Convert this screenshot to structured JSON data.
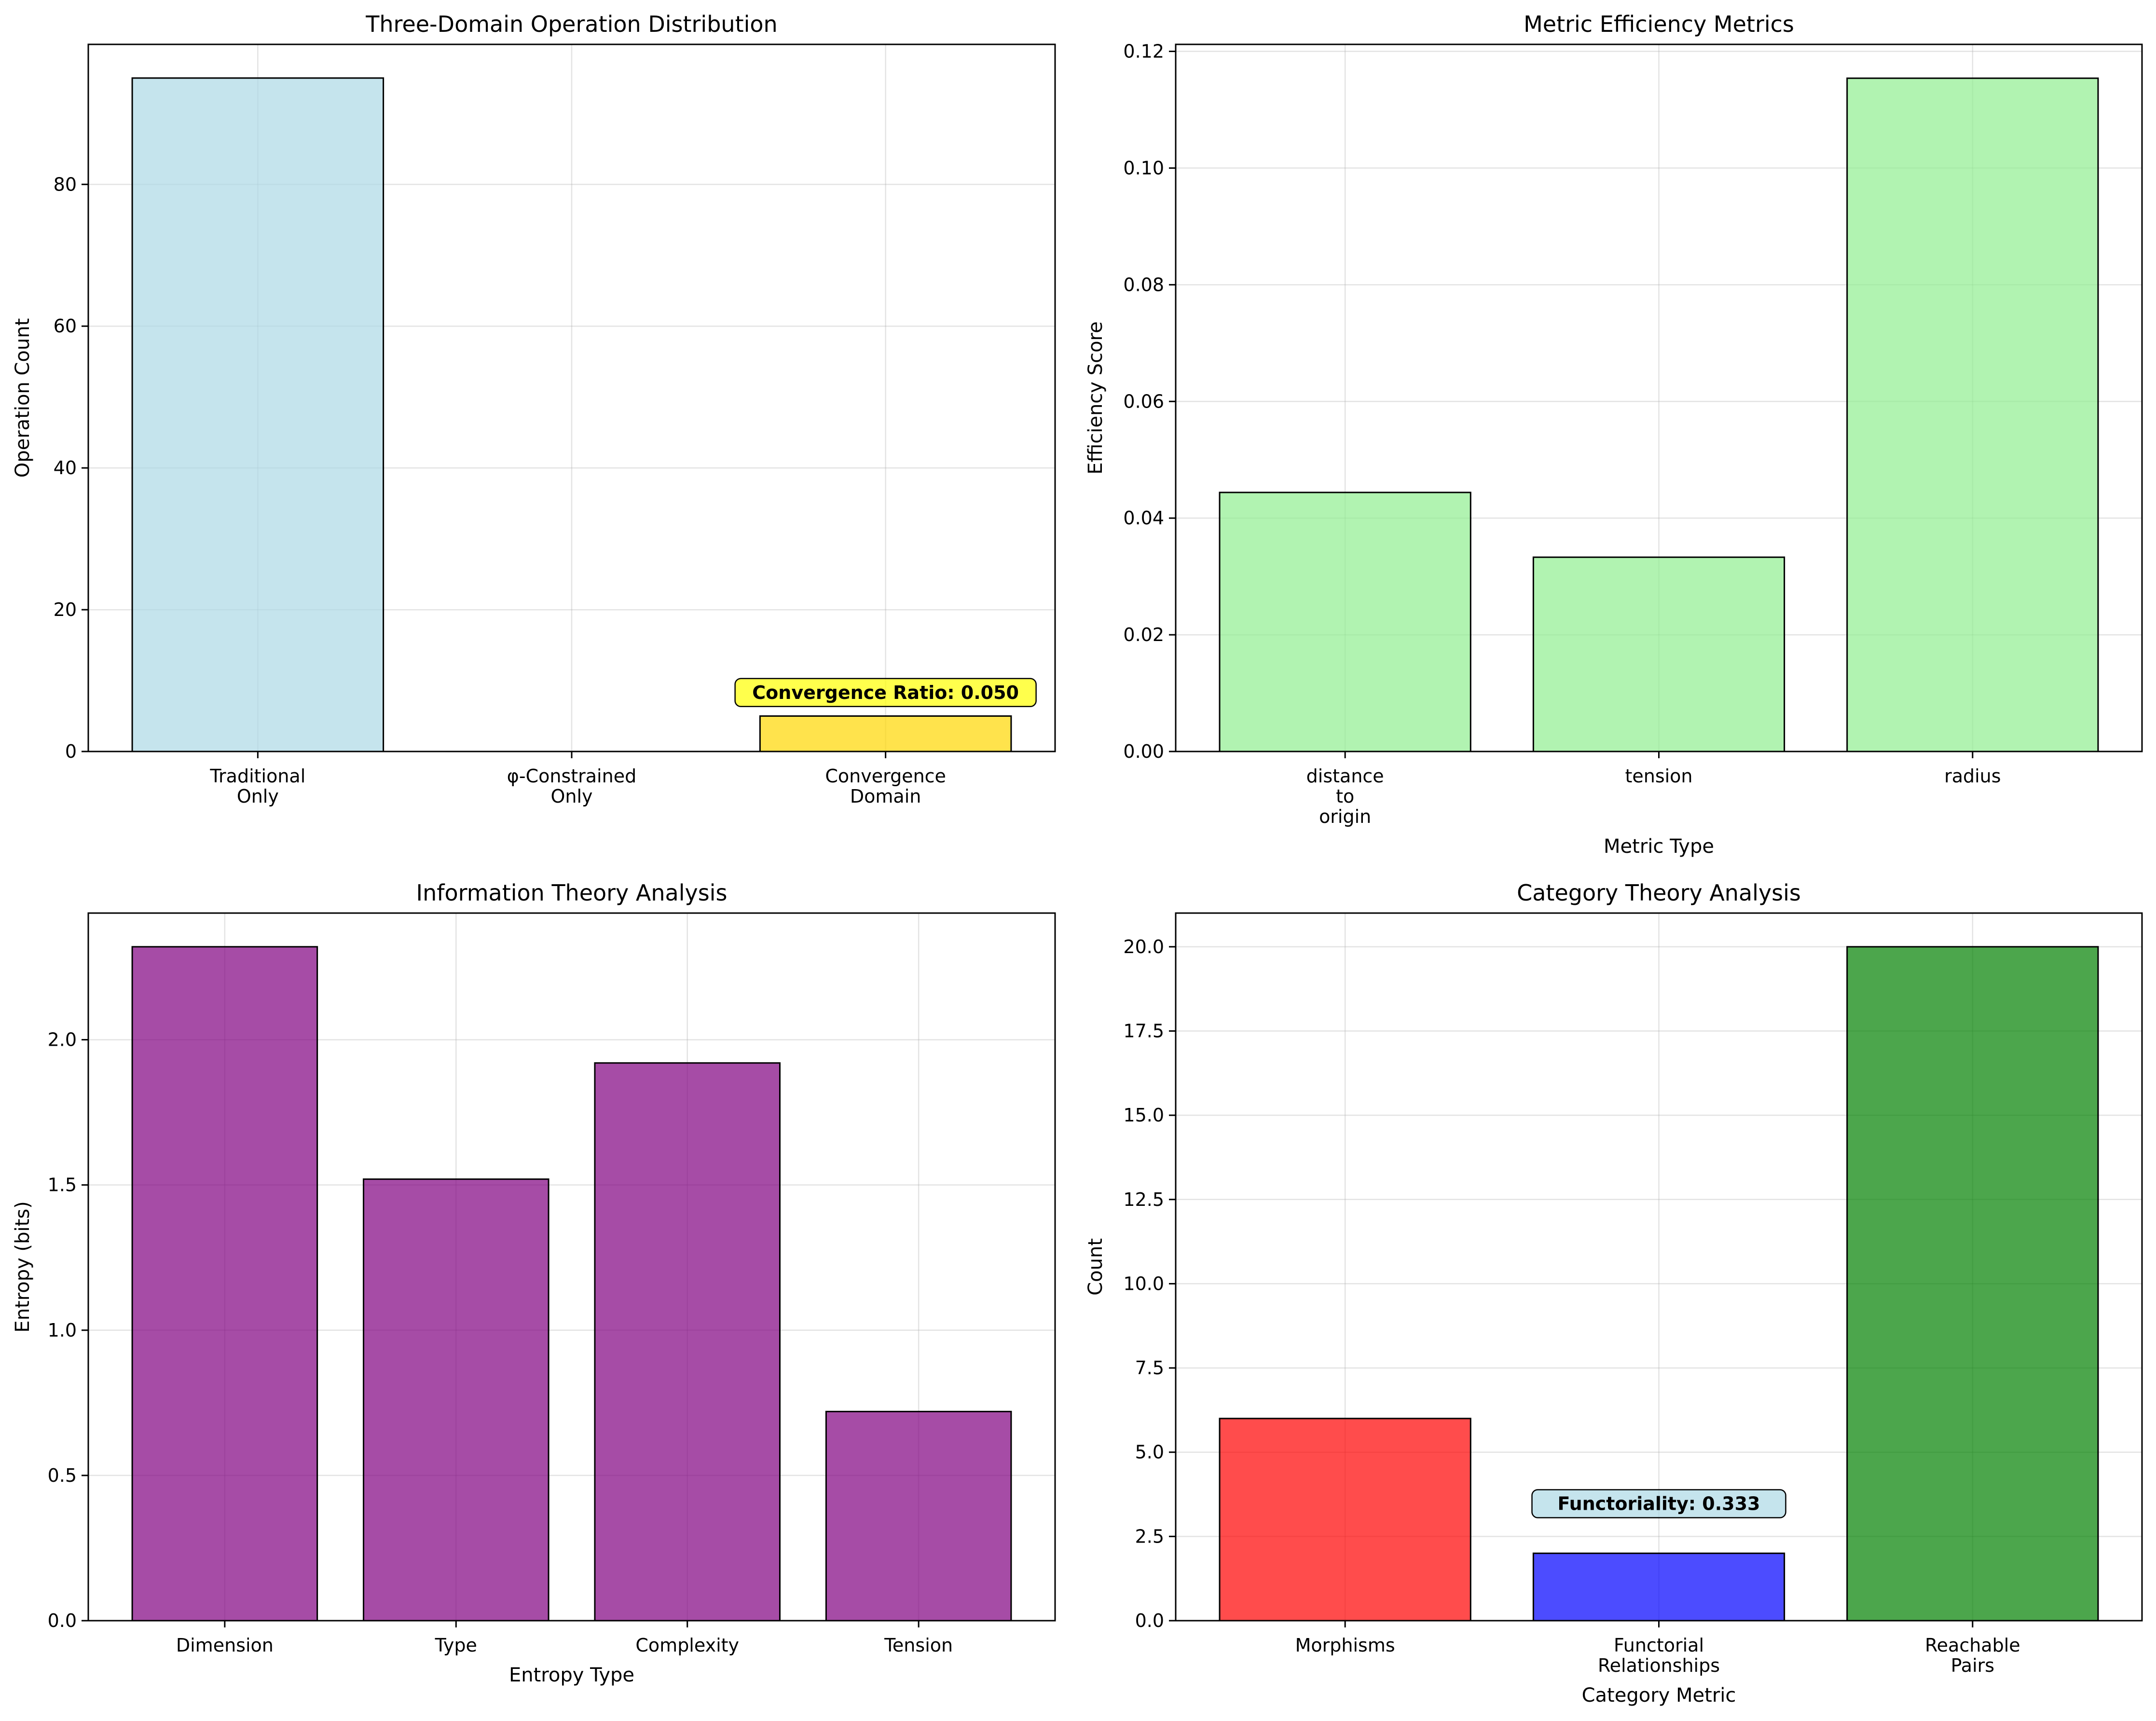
{
  "chart_data": [
    {
      "type": "bar",
      "title": "Three-Domain Operation Distribution",
      "xlabel": "",
      "ylabel": "Operation Count",
      "categories": [
        [
          "Traditional",
          "Only"
        ],
        [
          "φ-Constrained",
          "Only"
        ],
        [
          "Convergence",
          "Domain"
        ]
      ],
      "values": [
        95,
        0,
        5
      ],
      "colors": [
        "#add8e6",
        "#ffc0cb",
        "#ffd700"
      ],
      "ylim": [
        0,
        99.75
      ],
      "yticks": [
        0,
        20,
        40,
        60,
        80
      ],
      "ytick_labels": [
        "0",
        "20",
        "40",
        "60",
        "80"
      ],
      "grid": true,
      "annotation": {
        "text": "Convergence Ratio: 0.050",
        "x_index": 2,
        "y": 7.5,
        "bg": "#ffff00"
      }
    },
    {
      "type": "bar",
      "title": "Metric Efficiency Metrics",
      "xlabel": "Metric Type",
      "ylabel": "Efficiency Score",
      "categories": [
        [
          "distance",
          "to",
          "origin"
        ],
        [
          "tension"
        ],
        [
          "radius"
        ]
      ],
      "values": [
        0.0444,
        0.0333,
        0.1154
      ],
      "colors": [
        "#90ee90",
        "#90ee90",
        "#90ee90"
      ],
      "ylim": [
        0,
        0.1212
      ],
      "yticks": [
        0,
        0.02,
        0.04,
        0.06,
        0.08,
        0.1,
        0.12
      ],
      "ytick_labels": [
        "0.00",
        "0.02",
        "0.04",
        "0.06",
        "0.08",
        "0.10",
        "0.12"
      ],
      "grid": true
    },
    {
      "type": "bar",
      "title": "Information Theory Analysis",
      "xlabel": "Entropy Type",
      "ylabel": "Entropy (bits)",
      "categories": [
        [
          "Dimension"
        ],
        [
          "Type"
        ],
        [
          "Complexity"
        ],
        [
          "Tension"
        ]
      ],
      "values": [
        2.32,
        1.52,
        1.92,
        0.72
      ],
      "colors": [
        "#800080",
        "#800080",
        "#800080",
        "#800080"
      ],
      "ylim": [
        0,
        2.436
      ],
      "yticks": [
        0,
        0.5,
        1,
        1.5,
        2
      ],
      "ytick_labels": [
        "0.0",
        "0.5",
        "1.0",
        "1.5",
        "2.0"
      ],
      "grid": true
    },
    {
      "type": "bar",
      "title": "Category Theory Analysis",
      "xlabel": "Category Metric",
      "ylabel": "Count",
      "categories": [
        [
          "Morphisms"
        ],
        [
          "Functorial",
          "Relationships"
        ],
        [
          "Reachable",
          "Pairs"
        ]
      ],
      "values": [
        6,
        2,
        20
      ],
      "colors": [
        "#ff0000",
        "#0000ff",
        "#008000"
      ],
      "ylim": [
        0,
        21
      ],
      "yticks": [
        0,
        2.5,
        5,
        7.5,
        10,
        12.5,
        15,
        17.5,
        20
      ],
      "ytick_labels": [
        "0.0",
        "2.5",
        "5.0",
        "7.5",
        "10.0",
        "12.5",
        "15.0",
        "17.5",
        "20.0"
      ],
      "grid": true,
      "annotation": {
        "text": "Functoriality: 0.333",
        "x_index": 1,
        "y": 3.3,
        "bg": "#add8e6"
      }
    }
  ]
}
